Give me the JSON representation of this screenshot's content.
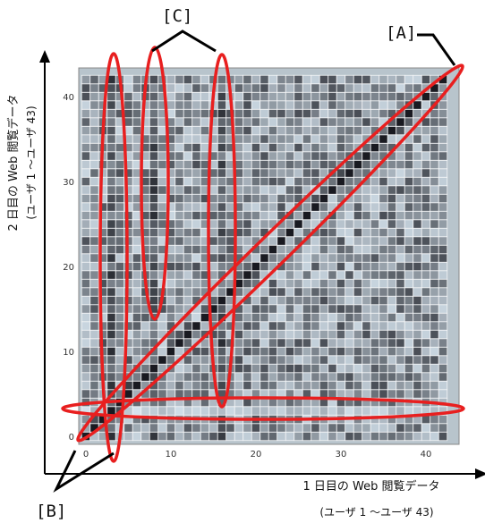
{
  "chart_data": {
    "type": "heatmap",
    "n_users": 43,
    "xlabel_line1": "1 日目の Web 閲覧データ",
    "xlabel_line2": "(ユーザ 1 ～ユーザ 43)",
    "ylabel_line1": "2 日目の Web 閲覧データ",
    "ylabel_line2": "(ユーザ 1 ～ユーザ 43)",
    "x_ticks": [
      "0",
      "10",
      "20",
      "30",
      "40"
    ],
    "y_ticks": [
      "0",
      "10",
      "20",
      "30",
      "40"
    ],
    "xlim": [
      -0.5,
      43.5
    ],
    "ylim": [
      -0.5,
      43.5
    ],
    "diagonal": "darkest cells (highest similarity) along the diagonal",
    "dark_columns": [
      3,
      8,
      16
    ],
    "light_row": 3,
    "colors": {
      "dark": "#0d1a22",
      "light": "#eef3f6",
      "highlight": "#e81f1f"
    }
  },
  "annotations": {
    "A": "[A]",
    "B": "[B]",
    "C": "[C]"
  }
}
